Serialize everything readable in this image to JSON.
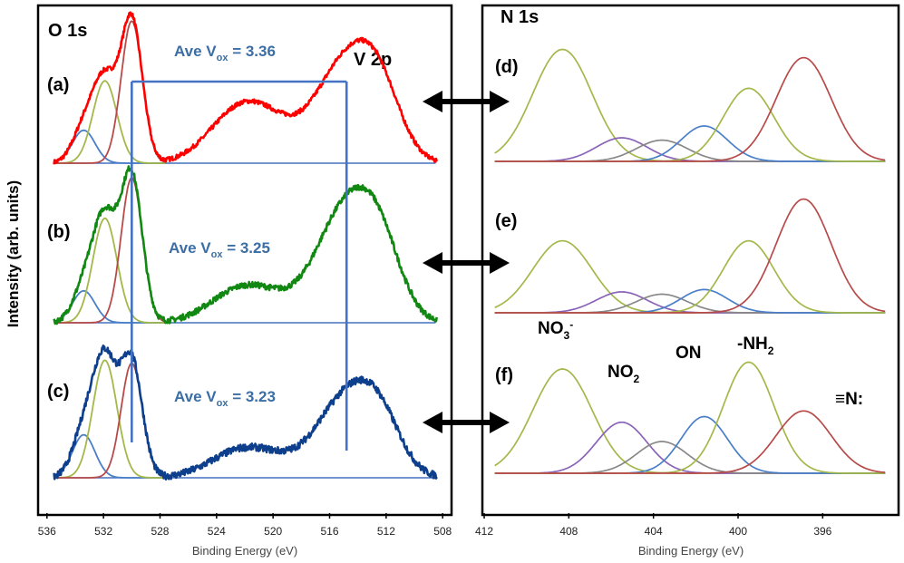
{
  "figure": {
    "ylabel": "Intensity (arb. units)"
  },
  "colors": {
    "a": "#ff0000",
    "b": "#118811",
    "c": "#0d3f8c",
    "comp_blue": "#4a7fc8",
    "comp_olive": "#a3b84a",
    "comp_red": "#b84a4a",
    "comp_purple": "#8a63b8",
    "comp_gray": "#888888",
    "guide": "#4472c4",
    "arrow": "#000000"
  },
  "chart_data": [
    {
      "type": "line",
      "panel": "left",
      "title": "O 1s",
      "second_title": "V 2p",
      "xlabel": "Binding Energy (eV)",
      "xlim": [
        536.5,
        507.5
      ],
      "xticks": [
        "536",
        "532",
        "528",
        "524",
        "520",
        "516",
        "512",
        "508"
      ],
      "xtick_values": [
        536,
        532,
        528,
        524,
        520,
        516,
        512,
        508
      ],
      "series": [
        {
          "key": "a",
          "label": "(a)",
          "vox_text": "Ave V",
          "vox_sub": "ox",
          "vox_value": " = 3.36"
        },
        {
          "key": "b",
          "label": "(b)",
          "vox_text": "Ave V",
          "vox_sub": "ox",
          "vox_value": " = 3.25"
        },
        {
          "key": "c",
          "label": "(c)",
          "vox_text": "Ave V",
          "vox_sub": "ox",
          "vox_value": " = 3.23"
        }
      ],
      "guide_lines_eV": [
        530.0,
        514.8
      ]
    },
    {
      "type": "line",
      "panel": "right",
      "title": "N 1s",
      "xlabel": "Binding Energy (eV)",
      "xlim": [
        412,
        392.5
      ],
      "xticks": [
        "412",
        "408",
        "404",
        "400",
        "396"
      ],
      "xtick_values": [
        412,
        408,
        404,
        400,
        396
      ],
      "series": [
        {
          "key": "d",
          "label": "(d)"
        },
        {
          "key": "e",
          "label": "(e)"
        },
        {
          "key": "f",
          "label": "(f)"
        }
      ],
      "species": [
        {
          "text": "NO",
          "sub": "3",
          "sup": "-"
        },
        {
          "text": "NO",
          "sub": "2",
          "sup": ""
        },
        {
          "text": "ON",
          "sub": "",
          "sup": ""
        },
        {
          "text": "-NH",
          "sub": "2",
          "sup": ""
        },
        {
          "text": "≡N:",
          "sub": "",
          "sup": ""
        }
      ]
    }
  ]
}
